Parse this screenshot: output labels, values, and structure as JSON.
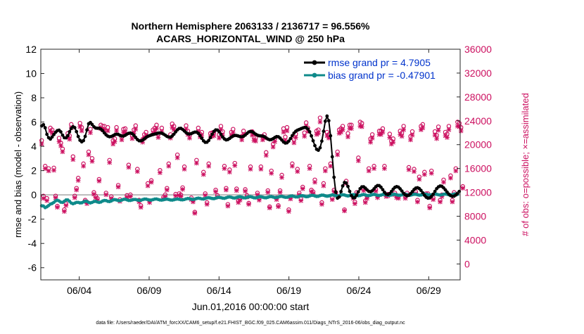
{
  "chart_data": {
    "type": "line",
    "title_line1": "Northern Hemisphere 2063133 / 2136717 = 96.556%",
    "title_line2": "ACARS_HORIZONTAL_WIND @ 250 hPa",
    "xlabel": "Jun.01,2016 00:00:00 start",
    "ylabel_left": "rmse and bias (model - observation)",
    "ylabel_right": "# of obs: o=possible; ×=assimilated",
    "footer": "data file: /Users/raeder/DAI/ATM_forcXX/CAM6_setup/f.e21.FHIST_BGC.f09_025.CAM6assim.011/Diags_NTrS_2016-06/obs_diag_output.nc",
    "x_range_days": [
      1.0,
      31.0
    ],
    "x_ticks": [
      {
        "day": 3.75,
        "label": "06/04"
      },
      {
        "day": 8.75,
        "label": "06/09"
      },
      {
        "day": 13.75,
        "label": "06/14"
      },
      {
        "day": 18.75,
        "label": "06/19"
      },
      {
        "day": 23.75,
        "label": "06/24"
      },
      {
        "day": 28.75,
        "label": "06/29"
      }
    ],
    "ylim_left": [
      -7,
      12
    ],
    "y_ticks_left": [
      12,
      10,
      8,
      6,
      4,
      2,
      0,
      -2,
      -4,
      -6
    ],
    "ylim_right": [
      -2666.67,
      36000
    ],
    "y_ticks_right": [
      36000,
      32000,
      28000,
      24000,
      20000,
      16000,
      12000,
      8000,
      4000,
      0
    ],
    "zero_line": 0,
    "colors": {
      "rmse": "#000000",
      "bias": "#0e8a8a",
      "counts": "#cc1060",
      "zero": "#bbbbbb",
      "legend_text": "#0033cc"
    },
    "series": [
      {
        "name": "rmse grand pr = 4.7905",
        "values": [
          5.68,
          5.78,
          5.53,
          4.99,
          4.71,
          4.6,
          4.77,
          4.97,
          5.16,
          5.29,
          5.33,
          5.19,
          4.92,
          4.71,
          4.7,
          4.87,
          5.2,
          5.47,
          5.62,
          5.54,
          5.21,
          4.81,
          4.5,
          4.37,
          4.47,
          4.82,
          5.35,
          5.86,
          5.96,
          5.8,
          5.61,
          5.51,
          5.49,
          5.49,
          5.42,
          5.29,
          5.11,
          4.95,
          4.84,
          4.79,
          4.81,
          4.88,
          4.96,
          5.0,
          4.98,
          4.91,
          4.85,
          4.85,
          4.91,
          5.0,
          5.07,
          5.1,
          5.04,
          4.91,
          4.73,
          4.56,
          4.46,
          4.45,
          4.51,
          4.61,
          4.73,
          4.82,
          4.88,
          4.93,
          4.97,
          5.01,
          5.05,
          5.09,
          5.1,
          5.08,
          5.01,
          4.92,
          4.82,
          4.76,
          4.76,
          4.85,
          5.0,
          5.19,
          5.36,
          5.47,
          5.48,
          5.39,
          5.26,
          5.13,
          5.03,
          5.01,
          5.05,
          5.12,
          5.17,
          5.17,
          5.07,
          4.89,
          4.66,
          4.45,
          4.33,
          4.34,
          4.48,
          4.72,
          5.0,
          5.23,
          5.35,
          5.34,
          5.2,
          4.99,
          4.77,
          4.61,
          4.53,
          4.56,
          4.65,
          4.76,
          4.85,
          4.9,
          4.89,
          4.85,
          4.8,
          4.79,
          4.83,
          4.93,
          5.06,
          5.18,
          5.23,
          5.2,
          5.1,
          5.0,
          4.92,
          4.87,
          4.86,
          4.84,
          4.79,
          4.7,
          4.6,
          4.54,
          4.56,
          4.63,
          4.73,
          4.8,
          4.79,
          4.68,
          4.52,
          4.36,
          4.27,
          4.29,
          4.43,
          4.64,
          4.88,
          5.09,
          5.24,
          5.33,
          5.39,
          5.45,
          5.51,
          5.55,
          5.54,
          5.43,
          5.2,
          4.86,
          4.46,
          4.06,
          3.76,
          3.68,
          3.88,
          4.43,
          5.24,
          6.07,
          6.49,
          6.11,
          4.87,
          3.14,
          1.45,
          0.24,
          -0.27,
          -0.17,
          0.27,
          0.74,
          1.02,
          0.98,
          0.7,
          0.29,
          -0.06,
          -0.24,
          -0.22,
          -0.03,
          0.25,
          0.51,
          0.66,
          0.67,
          0.56,
          0.41,
          0.29,
          0.26,
          0.34,
          0.5,
          0.67,
          0.77,
          0.76,
          0.63,
          0.43,
          0.22,
          0.07,
          0.03,
          0.11,
          0.28,
          0.47,
          0.62,
          0.68,
          0.64,
          0.5,
          0.32,
          0.13,
          -0.01,
          -0.07,
          -0.03,
          0.1,
          0.27,
          0.44,
          0.56,
          0.59,
          0.52,
          0.37,
          0.17,
          -0.03,
          -0.19,
          -0.27,
          -0.25,
          -0.13,
          0.06,
          0.29,
          0.51,
          0.66,
          0.73,
          0.7,
          0.58,
          0.41,
          0.23,
          0.06,
          -0.06,
          -0.12,
          -0.1,
          -0.01,
          0.13,
          0.28
        ]
      },
      {
        "name": "bias grand pr = -0.47901",
        "values": [
          -0.9,
          -0.92,
          -1.05,
          -0.98,
          -0.88,
          -0.76,
          -0.71,
          -0.62,
          -0.49,
          -0.44,
          -0.5,
          -0.6,
          -0.62,
          -0.53,
          -0.42,
          -0.42,
          -0.53,
          -0.67,
          -0.73,
          -0.68,
          -0.62,
          -0.62,
          -0.66,
          -0.65,
          -0.58,
          -0.52,
          -0.54,
          -0.62,
          -0.66,
          -0.62,
          -0.55,
          -0.53,
          -0.58,
          -0.62,
          -0.59,
          -0.51,
          -0.46,
          -0.47,
          -0.53,
          -0.55,
          -0.5,
          -0.42,
          -0.39,
          -0.42,
          -0.47,
          -0.48,
          -0.43,
          -0.37,
          -0.36,
          -0.41,
          -0.46,
          -0.46,
          -0.42,
          -0.38,
          -0.38,
          -0.42,
          -0.45,
          -0.44,
          -0.39,
          -0.35,
          -0.35,
          -0.39,
          -0.43,
          -0.43,
          -0.39,
          -0.35,
          -0.34,
          -0.38,
          -0.42,
          -0.43,
          -0.4,
          -0.36,
          -0.35,
          -0.38,
          -0.42,
          -0.43,
          -0.4,
          -0.36,
          -0.34,
          -0.36,
          -0.4,
          -0.41,
          -0.38,
          -0.33,
          -0.3,
          -0.32,
          -0.36,
          -0.38,
          -0.35,
          -0.3,
          -0.27,
          -0.29,
          -0.33,
          -0.34,
          -0.3,
          -0.25,
          -0.23,
          -0.26,
          -0.3,
          -0.31,
          -0.27,
          -0.22,
          -0.2,
          -0.23,
          -0.27,
          -0.28,
          -0.24,
          -0.19,
          -0.17,
          -0.2,
          -0.25,
          -0.26,
          -0.22,
          -0.17,
          -0.15,
          -0.19,
          -0.24,
          -0.25,
          -0.21,
          -0.16,
          -0.15,
          -0.19,
          -0.24,
          -0.25,
          -0.21,
          -0.16,
          -0.15,
          -0.19,
          -0.23,
          -0.24,
          -0.2,
          -0.15,
          -0.14,
          -0.18,
          -0.22,
          -0.22,
          -0.18,
          -0.13,
          -0.12,
          -0.16,
          -0.2,
          -0.2,
          -0.15,
          -0.1,
          -0.09,
          -0.13,
          -0.17,
          -0.17,
          -0.12,
          -0.07,
          -0.07,
          -0.11,
          -0.15,
          -0.14,
          -0.09,
          -0.04,
          -0.04,
          -0.09,
          -0.13,
          -0.12,
          -0.06,
          -0.02,
          -0.03,
          -0.08,
          -0.11,
          -0.09,
          -0.04,
          -0.0,
          -0.02,
          -0.07,
          -0.1,
          -0.08,
          -0.02,
          0.01,
          -0.01,
          -0.06,
          -0.09,
          -0.06,
          -0.01,
          0.02,
          -0.0,
          -0.05,
          -0.07,
          -0.05,
          0.0,
          0.03,
          0.0,
          -0.05,
          -0.06,
          -0.03,
          0.02,
          0.04,
          0.01,
          -0.04,
          -0.05,
          -0.02,
          0.03,
          0.04,
          0.01,
          -0.03,
          -0.04,
          -0.01,
          0.04,
          0.05,
          0.01,
          -0.03,
          -0.03,
          0.0,
          0.05,
          0.05,
          0.01,
          -0.03,
          -0.02,
          0.02,
          0.05,
          0.05,
          0.01,
          -0.02,
          -0.01,
          0.03,
          0.06,
          0.05,
          0.01,
          -0.01,
          0.0,
          0.04,
          0.06,
          0.05,
          0.01,
          -0.01,
          0.01,
          0.05,
          0.07,
          0.05,
          0.01,
          -0.0,
          0.02,
          0.06,
          0.07,
          0.04
        ]
      },
      {
        "name": "possible",
        "values": [
          20700,
          11400,
          16400,
          11000,
          16000,
          22800,
          22500,
          16100,
          11400,
          9700,
          21100,
          20300,
          19300,
          9100,
          10100,
          21900,
          21500,
          23400,
          18000,
          11400,
          12700,
          14400,
          23600,
          22900,
          16800,
          10700,
          10400,
          18800,
          22600,
          17700,
          12000,
          11400,
          11000,
          14200,
          23300,
          23100,
          23100,
          11900,
          22900,
          17400,
          11300,
          20700,
          21000,
          22900,
          13200,
          10800,
          21300,
          22600,
          22700,
          11500,
          16600,
          11600,
          21600,
          22500,
          23200,
          15900,
          10700,
          9800,
          20900,
          21700,
          22100,
          13500,
          10600,
          14000,
          22500,
          22800,
          23300,
          21800,
          15700,
          22800,
          11200,
          11600,
          12700,
          16800,
          21700,
          23500,
          23100,
          11700,
          18300,
          11800,
          11600,
          12800,
          16300,
          23200,
          22300,
          21600,
          11100,
          10700,
          8700,
          17400,
          22800,
          21800,
          22100,
          15400,
          11800,
          10300,
          16800,
          21900,
          22000,
          22100,
          12400,
          11500,
          21700,
          23100,
          22200,
          16400,
          12700,
          10000,
          15800,
          22100,
          22600,
          16900,
          12600,
          10600,
          11000,
          21400,
          22300,
          12500,
          11500,
          10200,
          16300,
          22200,
          21300,
          21200,
          11900,
          11000,
          16300,
          21400,
          21700,
          18700,
          12300,
          9600,
          15600,
          20100,
          21000,
          11100,
          9800,
          12300,
          14900,
          22700,
          21300,
          22900,
          9100,
          11200,
          16800,
          20900,
          21800,
          15900,
          11900,
          10900,
          12900,
          22000,
          23700,
          22800,
          16400,
          12400,
          12100,
          14100,
          22300,
          22500,
          24500,
          10300,
          13500,
          16000,
          22100,
          21700,
          16800,
          11100,
          12400,
          12000,
          18800,
          22500,
          22700,
          23100,
          9100,
          13900,
          21900,
          23300,
          23300,
          11300,
          10400,
          12000,
          17800,
          23800,
          23600,
          12600,
          10600,
          11300,
          16000,
          21000,
          21700,
          16400,
          12500,
          11400,
          22300,
          22300,
          22700,
          16400,
          11600,
          11700,
          21800,
          20600,
          21000,
          11900,
          11400,
          11300,
          22300,
          22000,
          23100,
          11300,
          11900,
          16200,
          21400,
          22200,
          15900,
          12100,
          10700,
          14600,
          23100,
          23400,
          15400,
          11800,
          11800,
          9700,
          15600,
          11100,
          22200,
          21600,
          23000,
          10700,
          11600,
          14100,
          22100,
          21800,
          23100,
          14800,
          10700,
          12000,
          16000,
          23800,
          23600,
          22900,
          13000
        ]
      },
      {
        "name": "assimilated",
        "values": [
          20100,
          11000,
          16000,
          10600,
          15600,
          22300,
          21900,
          15700,
          11100,
          9500,
          20500,
          19800,
          18800,
          8800,
          9800,
          21300,
          20900,
          22800,
          17500,
          11100,
          12400,
          14000,
          23000,
          22300,
          16400,
          10500,
          10100,
          18300,
          22000,
          17200,
          11700,
          11100,
          10700,
          13900,
          22700,
          22500,
          22500,
          11600,
          22300,
          17000,
          11000,
          20100,
          20500,
          22300,
          12900,
          10500,
          20800,
          22000,
          22100,
          11200,
          16200,
          11300,
          21000,
          21900,
          22600,
          15500,
          10400,
          9500,
          20400,
          21100,
          21500,
          13100,
          10300,
          13700,
          21900,
          22200,
          22700,
          21200,
          15300,
          22200,
          10900,
          11300,
          12400,
          16400,
          21100,
          22900,
          22500,
          11400,
          17800,
          11500,
          11300,
          12500,
          15900,
          22600,
          21700,
          21100,
          10800,
          10400,
          8500,
          16900,
          22200,
          21300,
          21500,
          15000,
          11500,
          10000,
          16400,
          21300,
          21400,
          21500,
          12100,
          11200,
          21100,
          22500,
          21600,
          16000,
          12400,
          9700,
          15400,
          21500,
          22000,
          16500,
          12300,
          10300,
          10700,
          20800,
          21700,
          12200,
          11200,
          10000,
          15900,
          21600,
          20700,
          20600,
          11600,
          10700,
          15900,
          20800,
          21100,
          18200,
          12000,
          9400,
          15200,
          19600,
          20500,
          10800,
          9600,
          12000,
          14500,
          22100,
          20700,
          22300,
          8800,
          10900,
          16400,
          20300,
          21200,
          15500,
          11600,
          10600,
          12600,
          21400,
          23100,
          22200,
          16000,
          12100,
          11800,
          13700,
          21700,
          21900,
          23800,
          10000,
          13100,
          15600,
          21500,
          21100,
          16400,
          10800,
          12100,
          11700,
          18300,
          21900,
          22100,
          22500,
          8900,
          13500,
          21300,
          22700,
          22700,
          11000,
          10100,
          11700,
          17300,
          23100,
          23000,
          12300,
          10300,
          11000,
          15600,
          20400,
          21100,
          16000,
          12200,
          11100,
          21700,
          21700,
          22100,
          16000,
          11300,
          11400,
          21200,
          20100,
          20400,
          11600,
          11100,
          11000,
          21700,
          21400,
          22500,
          11000,
          11600,
          15800,
          20800,
          21600,
          15500,
          11800,
          10400,
          14200,
          22500,
          22800,
          15000,
          11500,
          11500,
          9400,
          15200,
          10800,
          21600,
          21000,
          22400,
          10400,
          11300,
          13700,
          21500,
          21200,
          22500,
          14400,
          10400,
          11700,
          15600,
          23100,
          23000,
          22300,
          12700
        ]
      }
    ],
    "legend": {
      "position": "top-right",
      "entries": [
        "rmse grand pr = 4.7905",
        "bias grand pr = -0.47901"
      ]
    },
    "grid": false
  }
}
